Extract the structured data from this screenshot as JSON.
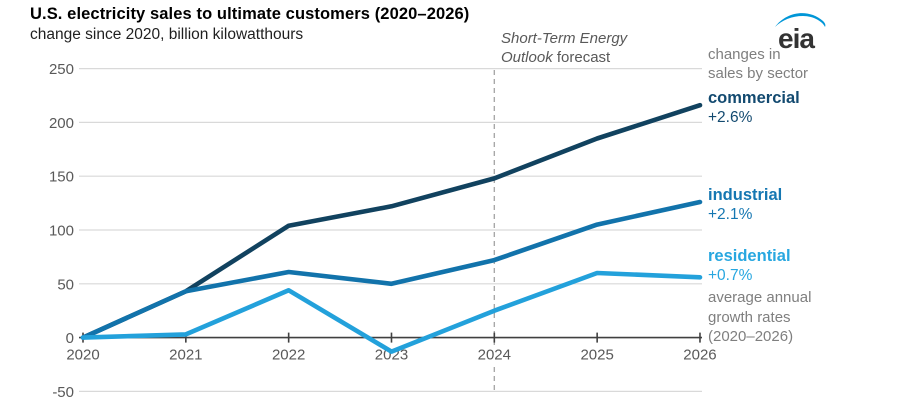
{
  "header": {
    "title": "U.S. electricity sales to ultimate customers (2020–2026)",
    "subtitle": "change since 2020, billion kilowatthours"
  },
  "logo": {
    "text": "eia"
  },
  "forecast_note": {
    "line1_italic": "Short-Term Energy",
    "line2_italic": "Outlook",
    "line2_regular": " forecast"
  },
  "right_panel": {
    "intro_line1": "changes in",
    "intro_line2": "sales by sector",
    "outro_line1": "average annual",
    "outro_line2": "growth rates",
    "outro_line3": "(2020–2026)",
    "sectors": [
      {
        "name": "commercial",
        "rate": "+2.6%"
      },
      {
        "name": "industrial",
        "rate": "+2.1%"
      },
      {
        "name": "residential",
        "rate": "+0.7%"
      }
    ]
  },
  "chart_data": {
    "type": "line",
    "title": "U.S. electricity sales to ultimate customers (2020–2026)",
    "subtitle": "change since 2020, billion kilowatthours",
    "x": [
      2020,
      2021,
      2022,
      2023,
      2024,
      2025,
      2026
    ],
    "series": [
      {
        "name": "commercial",
        "color": "#11425f",
        "values": [
          0,
          43,
          104,
          122,
          148,
          185,
          216
        ],
        "avg_annual_growth": "+2.6%"
      },
      {
        "name": "industrial",
        "color": "#1273ab",
        "values": [
          0,
          43,
          61,
          50,
          72,
          105,
          126
        ],
        "avg_annual_growth": "+2.1%"
      },
      {
        "name": "residential",
        "color": "#23a1db",
        "values": [
          0,
          3,
          44,
          -13,
          25,
          60,
          56
        ],
        "avg_annual_growth": "+0.7%"
      }
    ],
    "yticks": [
      250,
      200,
      150,
      100,
      50,
      0,
      -50
    ],
    "ylim": [
      -50,
      250
    ],
    "grid": true,
    "legend_position": "right",
    "forecast_divider_x": 2024,
    "forecast_annotation": "Short-Term Energy Outlook forecast",
    "colors": {
      "gridline": "#d9d9d9",
      "axis": "#404040",
      "tick_label": "#595959",
      "dashed_divider": "#a8a8a8",
      "logo_swoosh": "#0096d7",
      "logo_text": "#333333"
    }
  }
}
